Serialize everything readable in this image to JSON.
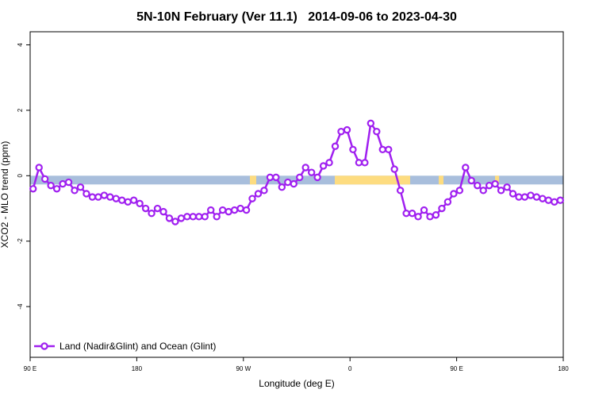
{
  "chart_data": {
    "type": "line",
    "title": "5N-10N February (Ver 11.1)   2014-09-06 to 2023-04-30",
    "xlabel": "Longitude (deg E)",
    "ylabel": "XCO2 - MLO trend (ppm)",
    "xlim": [
      90,
      540
    ],
    "ylim": [
      -5.55,
      4.4
    ],
    "xticks": [
      {
        "value": 90,
        "label": "90 E"
      },
      180,
      {
        "value": 270,
        "label": "90 W"
      },
      {
        "value": 360,
        "label": "0"
      },
      {
        "value": 450,
        "label": "90 E"
      },
      {
        "value": 540,
        "label": "180"
      }
    ],
    "yticks": [
      -4,
      -2,
      0,
      2,
      4
    ],
    "legend": "bottom-left",
    "x": [
      92.5,
      97.5,
      102.5,
      107.5,
      112.5,
      117.5,
      122.5,
      127.5,
      132.5,
      137.5,
      142.5,
      147.5,
      152.5,
      157.5,
      162.5,
      167.5,
      172.5,
      177.5,
      182.5,
      187.5,
      192.5,
      197.5,
      202.5,
      207.5,
      212.5,
      217.5,
      222.5,
      227.5,
      232.5,
      237.5,
      242.5,
      247.5,
      252.5,
      257.5,
      262.5,
      267.5,
      272.5,
      277.5,
      282.5,
      287.5,
      292.5,
      297.5,
      302.5,
      307.5,
      312.5,
      317.5,
      322.5,
      327.5,
      332.5,
      337.5,
      342.5,
      347.5,
      352.5,
      357.5,
      362.5,
      367.5,
      372.5,
      377.5,
      382.5,
      387.5,
      392.5,
      397.5,
      402.5,
      407.5,
      412.5,
      417.5,
      422.5,
      427.5,
      432.5,
      437.5,
      442.5,
      447.5,
      452.5,
      457.5,
      462.5,
      467.5,
      472.5,
      477.5,
      482.5,
      487.5,
      492.5,
      497.5,
      502.5,
      507.5,
      512.5,
      517.5,
      522.5,
      527.5,
      532.5,
      537.5
    ],
    "series": [
      {
        "name": "Land (Nadir&Glint) and Ocean (Glint)",
        "color": "#a020f0",
        "values": [
          -0.4,
          0.25,
          -0.1,
          -0.3,
          -0.4,
          -0.25,
          -0.2,
          -0.45,
          -0.35,
          -0.55,
          -0.65,
          -0.65,
          -0.6,
          -0.65,
          -0.7,
          -0.75,
          -0.8,
          -0.75,
          -0.85,
          -1.0,
          -1.15,
          -1.0,
          -1.1,
          -1.3,
          -1.4,
          -1.3,
          -1.25,
          -1.25,
          -1.25,
          -1.25,
          -1.05,
          -1.25,
          -1.05,
          -1.1,
          -1.05,
          -1.0,
          -1.05,
          -0.7,
          -0.55,
          -0.45,
          -0.05,
          -0.05,
          -0.35,
          -0.2,
          -0.25,
          -0.05,
          0.25,
          0.1,
          -0.05,
          0.3,
          0.4,
          0.9,
          1.35,
          1.4,
          0.8,
          0.4,
          0.4,
          1.6,
          1.35,
          0.8,
          0.8,
          0.2,
          -0.45,
          -1.15,
          -1.15,
          -1.25,
          -1.05,
          -1.25,
          -1.2,
          -1.0,
          -0.8,
          -0.55,
          -0.45,
          0.25,
          -0.15,
          -0.3,
          -0.45,
          -0.3,
          -0.25,
          -0.45,
          -0.35,
          -0.55,
          -0.65,
          -0.65,
          -0.6,
          -0.65,
          -0.7,
          -0.75,
          -0.8,
          -0.75
        ]
      }
    ]
  }
}
